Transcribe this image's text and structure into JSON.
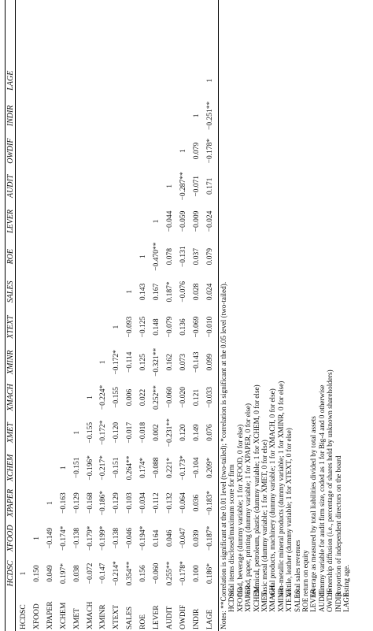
{
  "table": {
    "columns": [
      "HCDSC",
      "XFOOD",
      "XPAPER",
      "XCHEM",
      "XMET",
      "XMACH",
      "XMINR",
      "XTEXT",
      "SALES",
      "ROE",
      "LEVER",
      "AUDIT",
      "OWDIF",
      "INDIR",
      "LAGE"
    ],
    "rows": [
      {
        "label": "HCDSC",
        "values": [
          "1"
        ]
      },
      {
        "label": "XFOOD",
        "values": [
          "0.150",
          "1"
        ]
      },
      {
        "label": "XPAPER",
        "values": [
          "0.049",
          "−0.149",
          "1"
        ]
      },
      {
        "label": "XCHEM",
        "values": [
          "0.197*",
          "−0.174*",
          "−0.163",
          "1"
        ]
      },
      {
        "label": "XMET",
        "values": [
          "0.038",
          "−0.138",
          "−0.129",
          "−0.151",
          "1"
        ]
      },
      {
        "label": "XMACH",
        "values": [
          "−0.072",
          "−0.179*",
          "−0.168",
          "−0.196*",
          "−0.155",
          "1"
        ]
      },
      {
        "label": "XMINR",
        "values": [
          "−0.147",
          "−0.199*",
          "−0.186*",
          "−0.217*",
          "−0.172*",
          "−0.224*",
          "1"
        ]
      },
      {
        "label": "XTEXT",
        "values": [
          "−0.214*",
          "−0.138",
          "−0.129",
          "−0.151",
          "−0.120",
          "−0.155",
          "−0.172*",
          "1"
        ]
      },
      {
        "label": "SALES",
        "values": [
          "0.354**",
          "−0.046",
          "−0.103",
          "0.264**",
          "−0.017",
          "0.006",
          "−0.114",
          "−0.093",
          "1"
        ]
      },
      {
        "label": "ROE",
        "values": [
          "0.156",
          "−0.194*",
          "−0.034",
          "0.174*",
          "−0.018",
          "0.022",
          "0.125",
          "−0.125",
          "0.143",
          "1"
        ]
      },
      {
        "label": "LEVER",
        "values": [
          "−0.060",
          "0.164",
          "−0.112",
          "−0.088",
          "0.002",
          "0.252**",
          "−0.321**",
          "0.148",
          "0.167",
          "−0.470**",
          "1"
        ]
      },
      {
        "label": "AUDIT",
        "values": [
          "0.255**",
          "0.046",
          "−0.132",
          "0.221*",
          "−0.231**",
          "−0.060",
          "0.162",
          "−0.079",
          "0.187*",
          "0.078",
          "−0.044",
          "1"
        ]
      },
      {
        "label": "OWDIF",
        "values": [
          "−0.178*",
          "−0.047",
          "−0.064",
          "−0.173*",
          "0.120",
          "−0.020",
          "0.073",
          "0.136",
          "−0.076",
          "−0.131",
          "−0.059",
          "−0.287**",
          "1"
        ]
      },
      {
        "label": "INDIR",
        "values": [
          "0.100",
          "0.039",
          "0.036",
          "−0.104",
          "0.149",
          "0.121",
          "−0.143",
          "−0.069",
          "0.028",
          "0.037",
          "−0.009",
          "−0.071",
          "0.079",
          "1"
        ]
      },
      {
        "label": "LAGE",
        "values": [
          "0.186*",
          "−0.187*",
          "−0.183*",
          "0.209*",
          "0.076",
          "−0.033",
          "0.099",
          "−0.010",
          "0.024",
          "0.079",
          "−0.024",
          "0.171",
          "−0.178*",
          "−0.251**",
          "1"
        ]
      }
    ]
  },
  "notes": {
    "title": "Notes: **Correlation is significant at the 0.01 level (two-tailed); *correlation is significant at the 0.05 level (two-tailed).",
    "legend": [
      {
        "code": "HCDSC",
        "desc": "total items disclosed/maximum score for firm"
      },
      {
        "code": "XFOOD",
        "desc": "food, beverage (dummy variable; 1 for XFOOD, 0 for else)"
      },
      {
        "code": "XPAPER",
        "desc": "wood, paper, printing (dummy variable; 1 for XPAPER, 0 for else)"
      },
      {
        "code": "XCHEM",
        "desc": "chemical, petroleum, plastic (dummy variable; 1 for XCHEM, 0 for else)"
      },
      {
        "code": "XMET",
        "desc": "basic metal (dummy variable; 1 for XMET, 0 for else)"
      },
      {
        "code": "XMACH",
        "desc": "metal products, machinery (dummy variable; 1 for XMACH, 0 for else)"
      },
      {
        "code": "XMINR",
        "desc": "non-metallic mineral products (dummy variable; 1 for XMINR, 0 for else)"
      },
      {
        "code": "XTEXT",
        "desc": "textile, leather (dummy variable; 1 for XTEXT, 0 for else)"
      },
      {
        "code": "SALES",
        "desc": "total sales revenues"
      },
      {
        "code": "ROE",
        "desc": "return on equity"
      },
      {
        "code": "LEVER",
        "desc": "leverage as measured by total liabilities divided by total assets"
      },
      {
        "code": "AUDIT",
        "desc": "dummy variable for audit firm size, coded as 1 for Big-4 and 0 otherwise"
      },
      {
        "code": "OWDIF",
        "desc": "ownership diffusion (i.e., percentage of shares held by unknown shareholders)"
      },
      {
        "code": "INDIR",
        "desc": "proportion of independent directors on the board"
      },
      {
        "code": "LAGE",
        "desc": "listing age."
      }
    ]
  }
}
